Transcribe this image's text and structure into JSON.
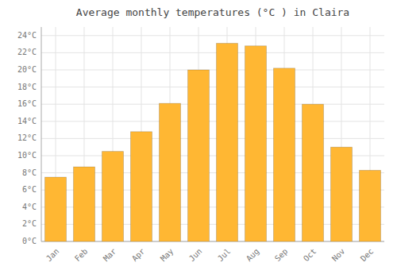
{
  "chart_data": {
    "type": "bar",
    "title": "Average monthly temperatures (°C ) in Claira",
    "categories": [
      "Jan",
      "Feb",
      "Mar",
      "Apr",
      "May",
      "Jun",
      "Jul",
      "Aug",
      "Sep",
      "Oct",
      "Nov",
      "Dec"
    ],
    "values": [
      7.5,
      8.7,
      10.5,
      12.8,
      16.1,
      20.0,
      23.1,
      22.8,
      20.2,
      16.0,
      11.0,
      8.3
    ],
    "color": "#FFB733",
    "ylim": [
      0,
      25
    ],
    "yticks": [
      {
        "value": 0,
        "label": "0°C"
      },
      {
        "value": 2,
        "label": "2°C"
      },
      {
        "value": 4,
        "label": "4°C"
      },
      {
        "value": 6,
        "label": "6°C"
      },
      {
        "value": 8,
        "label": "8°C"
      },
      {
        "value": 10,
        "label": "10°C"
      },
      {
        "value": 12,
        "label": "12°C"
      },
      {
        "value": 14,
        "label": "14°C"
      },
      {
        "value": 16,
        "label": "16°C"
      },
      {
        "value": 18,
        "label": "18°C"
      },
      {
        "value": 20,
        "label": "20°C"
      },
      {
        "value": 22,
        "label": "22°C"
      },
      {
        "value": 24,
        "label": "24°C"
      }
    ],
    "grid": true
  }
}
